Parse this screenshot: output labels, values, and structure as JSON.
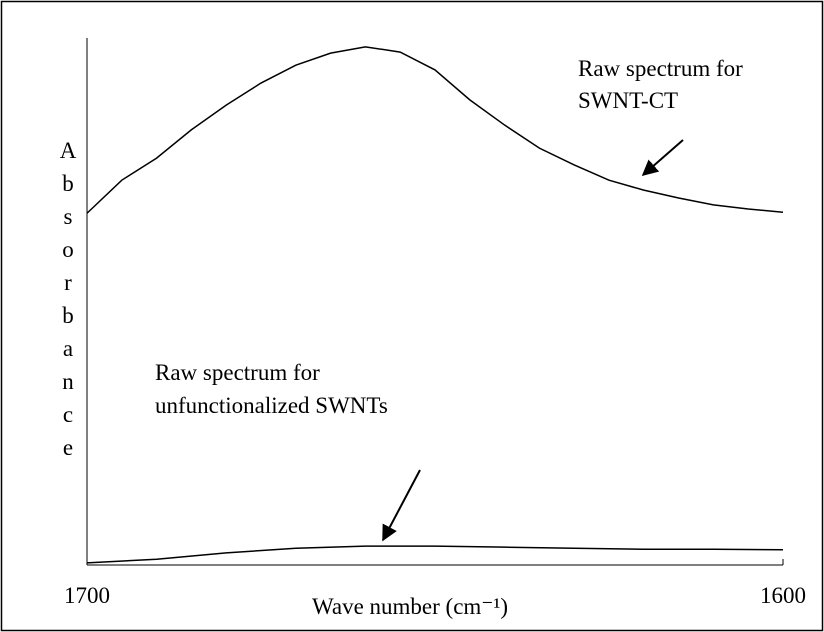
{
  "chart_data": {
    "type": "line",
    "xlabel": "Wave number (cm⁻¹)",
    "ylabel": "Absorbance",
    "xlim": [
      1700,
      1600
    ],
    "xticks": [
      1700,
      1600
    ],
    "ylim": [
      0,
      100
    ],
    "annotations": [
      "Raw spectrum for",
      "SWNT-CT",
      "Raw spectrum for",
      "unfunctionalized SWNTs"
    ],
    "series": [
      {
        "color": "#000000",
        "x": [
          1700,
          1695,
          1690,
          1685,
          1680,
          1675,
          1670,
          1665,
          1660,
          1655,
          1650,
          1645,
          1640,
          1635,
          1630,
          1625,
          1620,
          1615,
          1610,
          1605,
          1600
        ],
        "values": [
          67,
          73.3,
          77.5,
          82.9,
          87.6,
          91.8,
          95.2,
          97.5,
          98.7,
          97.7,
          94.3,
          88.6,
          83.8,
          79.4,
          76.2,
          73.3,
          71.4,
          69.9,
          68.6,
          67.8,
          67.2
        ]
      },
      {
        "color": "#000000",
        "x": [
          1700,
          1690,
          1680,
          1670,
          1660,
          1650,
          1640,
          1630,
          1620,
          1610,
          1600
        ],
        "values": [
          0.4,
          1.1,
          2.3,
          3.2,
          3.6,
          3.6,
          3.4,
          3.2,
          3.0,
          3.0,
          2.9
        ]
      }
    ]
  }
}
